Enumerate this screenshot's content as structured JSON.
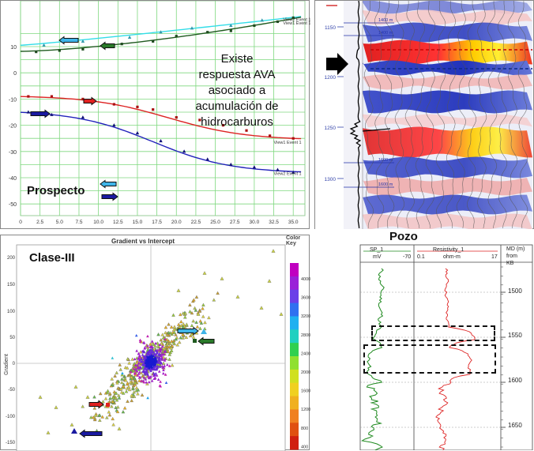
{
  "ava_chart": {
    "annotation_lines": [
      "Existe",
      "respuesta AVA",
      "asociado a",
      "acumulación  de",
      "hidrocarburos"
    ],
    "prospect_label": "Prospecto",
    "y_ticks": [
      "10",
      "0",
      "-10",
      "-20",
      "-30",
      "-40",
      "-50"
    ],
    "x_ticks": [
      "0",
      "2.5",
      "5.0",
      "7.5",
      "10.0",
      "12.5",
      "15.0",
      "17.5",
      "20.0",
      "22.5",
      "25.0",
      "27.5",
      "30.0",
      "32.5",
      "35.0"
    ],
    "curve_labels": [
      "View2 Event 1",
      "View1 Event 1",
      "View1 Event 1",
      "View2 Event 1"
    ],
    "colors": {
      "cyan": "#33dde8",
      "darkgreen": "#1f5a1f",
      "red": "#dd2222",
      "blue": "#2222bb",
      "arrow_cyan": "#3fb4e8",
      "arrow_green": "#2a7a2a",
      "arrow_red": "#e02020",
      "arrow_blue": "#1a1aa0"
    }
  },
  "seismic": {
    "depth_ticks": [
      "1150",
      "1200",
      "1250",
      "1300"
    ],
    "marker_labels": [
      "1400 m",
      "1400 m",
      "1600 m",
      "1600 m"
    ]
  },
  "crossplot": {
    "title": "Gradient vs Intercept",
    "class_label": "Clase-III",
    "y_label": "Gradient",
    "colorkey_label": "Color Key",
    "y_ticks": [
      "200",
      "150",
      "100",
      "50",
      "0",
      "-50",
      "-100",
      "-150"
    ],
    "scale_ticks": [
      "4000",
      "3600",
      "3200",
      "2800",
      "2400",
      "2000",
      "1600",
      "1200",
      "800",
      "400"
    ]
  },
  "well_log": {
    "title": "Pozo",
    "track1_name": "SP_1",
    "track1_unit": "mV",
    "track1_max": "-70",
    "track2_name": "Resistivity_1",
    "track2_min": "0.1",
    "track2_unit": "ohm-m",
    "track2_max": "17",
    "depth_header": [
      "MD (m)",
      "from",
      "KB"
    ],
    "depth_ticks": [
      "1500",
      "1550",
      "1600",
      "1650"
    ]
  }
}
